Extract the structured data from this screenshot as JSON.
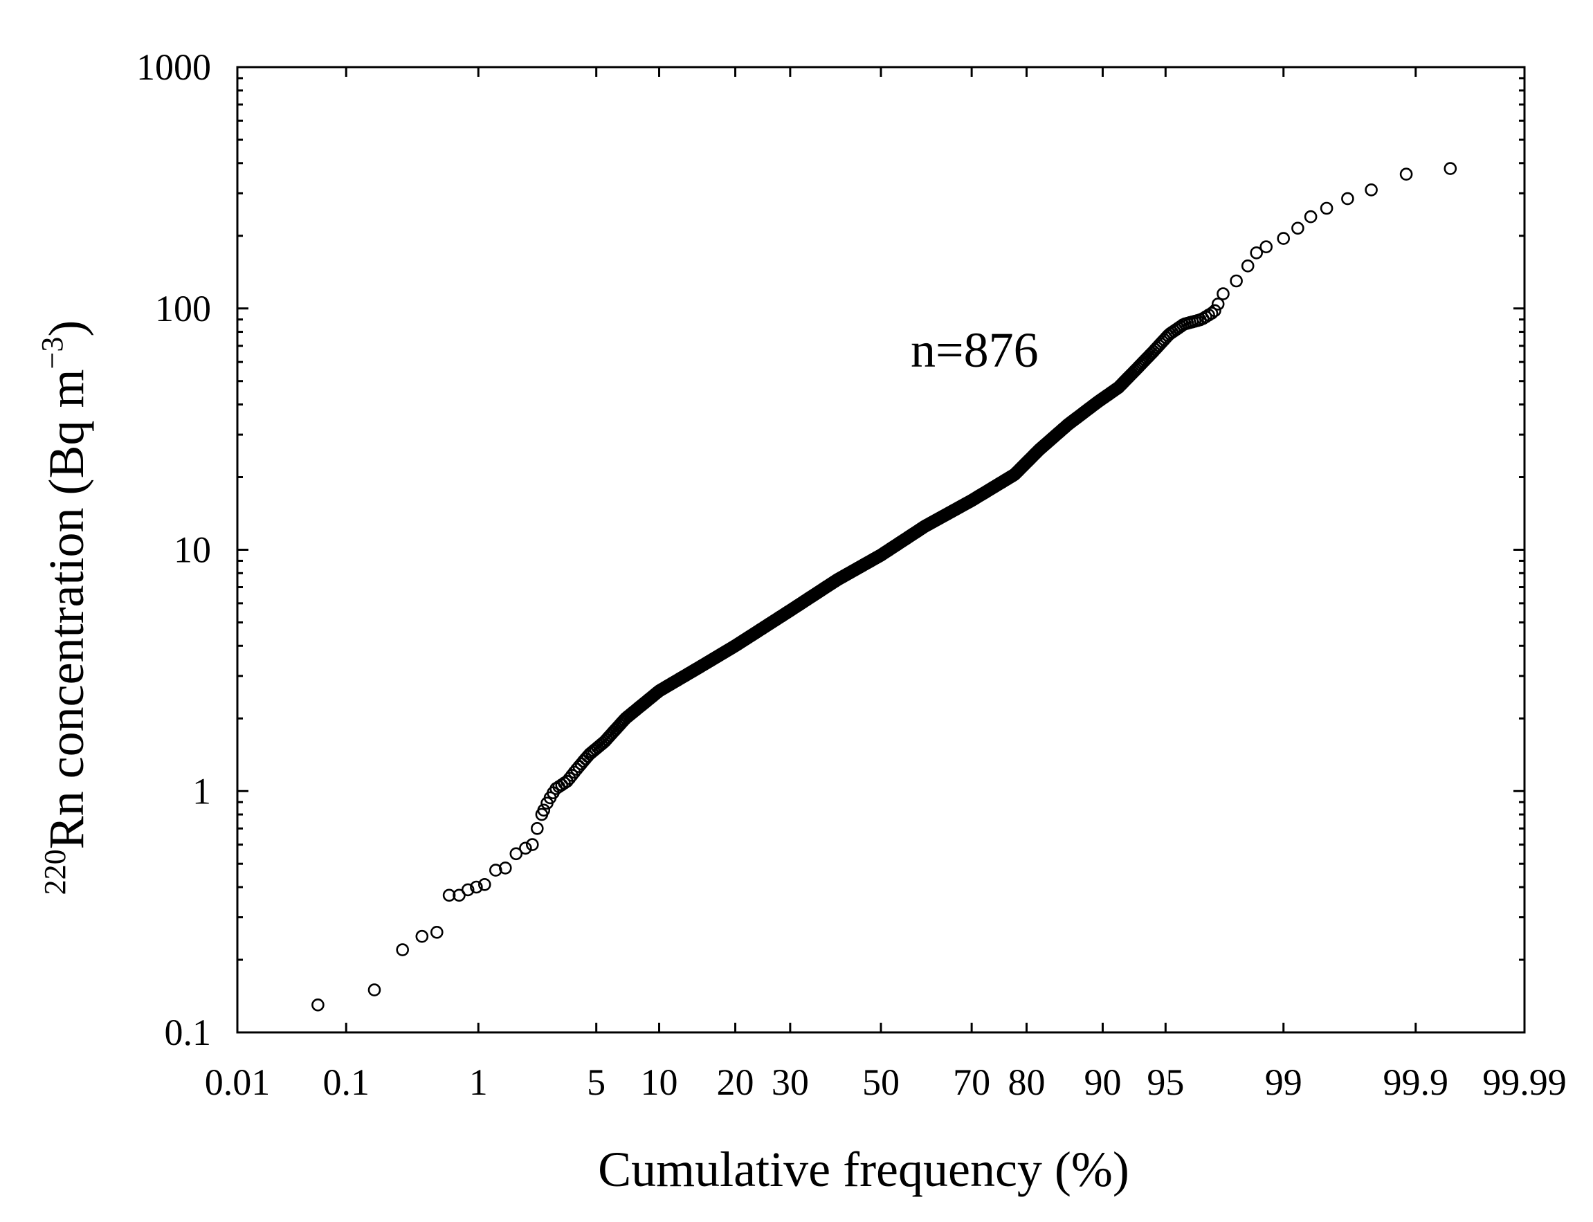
{
  "chart_data": {
    "type": "scatter",
    "title": "",
    "xlabel": "Cumulative frequency (%)",
    "ylabel_sup": "220",
    "ylabel_main": "Rn concentration (Bq m",
    "ylabel_exp": "−3",
    "ylabel_close": ")",
    "annotation": "n=876",
    "x_scale": "probability",
    "y_scale": "log",
    "xlim": [
      0.01,
      99.99
    ],
    "ylim": [
      0.1,
      1000
    ],
    "x_ticks": [
      0.01,
      0.1,
      1,
      5,
      10,
      20,
      30,
      50,
      70,
      80,
      90,
      95,
      99,
      99.9,
      99.99
    ],
    "x_tick_labels": [
      "0.01",
      "0.1",
      "1",
      "5",
      "10",
      "20",
      "30",
      "50",
      "70",
      "80",
      "90",
      "95",
      "99",
      "99.9",
      "99.99"
    ],
    "y_ticks": [
      0.1,
      1,
      10,
      100,
      1000
    ],
    "y_tick_labels": [
      "0.1",
      "1",
      "10",
      "100",
      "1000"
    ],
    "anchors": [
      [
        0.057,
        0.13
      ],
      [
        0.171,
        0.15
      ],
      [
        0.285,
        0.22
      ],
      [
        0.4,
        0.25
      ],
      [
        0.514,
        0.26
      ],
      [
        0.63,
        0.37
      ],
      [
        0.74,
        0.37
      ],
      [
        0.85,
        0.39
      ],
      [
        0.97,
        0.4
      ],
      [
        1.1,
        0.41
      ],
      [
        1.3,
        0.47
      ],
      [
        1.5,
        0.48
      ],
      [
        1.75,
        0.55
      ],
      [
        2.0,
        0.58
      ],
      [
        2.2,
        0.6
      ],
      [
        2.35,
        0.7
      ],
      [
        2.5,
        0.8
      ],
      [
        2.7,
        0.9
      ],
      [
        3.0,
        1.02
      ],
      [
        3.5,
        1.1
      ],
      [
        4.0,
        1.25
      ],
      [
        4.6,
        1.42
      ],
      [
        5.5,
        1.6
      ],
      [
        7.0,
        2.0
      ],
      [
        10.0,
        2.6
      ],
      [
        15.0,
        3.3
      ],
      [
        20.0,
        4.0
      ],
      [
        30.0,
        5.6
      ],
      [
        40.0,
        7.5
      ],
      [
        50.0,
        9.5
      ],
      [
        60.0,
        12.5
      ],
      [
        70.0,
        16.0
      ],
      [
        78.0,
        20.5
      ],
      [
        82.0,
        26.0
      ],
      [
        86.0,
        33.0
      ],
      [
        89.5,
        41.0
      ],
      [
        91.5,
        47.0
      ],
      [
        93.0,
        56.0
      ],
      [
        94.2,
        66.0
      ],
      [
        95.2,
        78.0
      ],
      [
        96.0,
        86.0
      ],
      [
        96.8,
        90.0
      ],
      [
        97.3,
        97.0
      ],
      [
        97.6,
        115.0
      ],
      [
        98.0,
        130.0
      ],
      [
        98.3,
        150.0
      ],
      [
        98.5,
        170.0
      ],
      [
        98.7,
        180.0
      ],
      [
        99.0,
        195.0
      ],
      [
        99.2,
        215.0
      ],
      [
        99.35,
        240.0
      ],
      [
        99.5,
        260.0
      ],
      [
        99.65,
        285.0
      ],
      [
        99.77,
        310.0
      ],
      [
        99.88,
        360.0
      ],
      [
        99.95,
        380.0
      ]
    ]
  }
}
